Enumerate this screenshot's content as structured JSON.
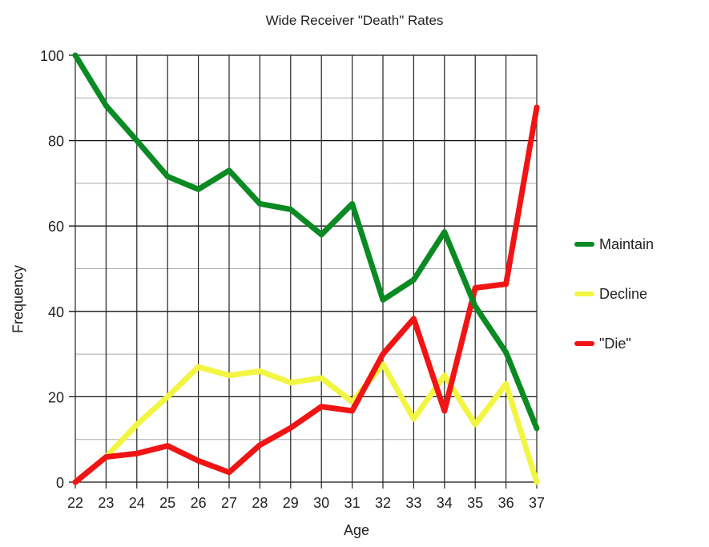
{
  "chart_data": {
    "type": "line",
    "title": "Wide Receiver \"Death\" Rates",
    "xlabel": "Age",
    "ylabel": "Frequency",
    "x": [
      22,
      23,
      24,
      25,
      26,
      27,
      28,
      29,
      30,
      31,
      32,
      33,
      34,
      35,
      36,
      37
    ],
    "ylim": [
      0,
      100
    ],
    "yticks": [
      0,
      20,
      40,
      60,
      80,
      100
    ],
    "grid": true,
    "legend_position": "right",
    "series": [
      {
        "name": "Maintain",
        "color": "#0a8a23",
        "values": [
          100,
          88.2,
          80,
          71.6,
          68.6,
          73,
          65.2,
          63.9,
          58,
          65.2,
          42.7,
          47.4,
          58.6,
          41.2,
          30.4,
          12.6
        ]
      },
      {
        "name": "Decline",
        "color": "#f2f542",
        "values": [
          0,
          5.9,
          13.5,
          20,
          27,
          25,
          26,
          23.3,
          24.4,
          18.8,
          27.6,
          14.8,
          25,
          13.5,
          23,
          0
        ]
      },
      {
        "name": "\"Die\"",
        "color": "#f01414",
        "values": [
          0,
          5.9,
          6.7,
          8.5,
          5,
          2.3,
          8.7,
          12.7,
          17.7,
          16.7,
          30,
          38.3,
          16.7,
          45.5,
          46.4,
          87.8
        ]
      }
    ]
  },
  "labels": {
    "title": "Wide Receiver \"Death\" Rates",
    "xlabel": "Age",
    "ylabel": "Frequency",
    "legend": [
      "Maintain",
      "Decline",
      "\"Die\""
    ]
  }
}
